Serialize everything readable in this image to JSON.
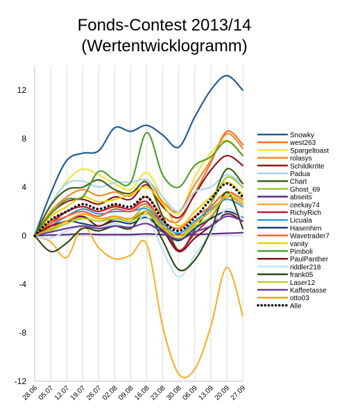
{
  "chart_data": {
    "type": "line",
    "title": "Fonds-Contest 2013/14",
    "subtitle": "(Wertentwicklogramm)",
    "xlabel": "",
    "ylabel": "",
    "x": [
      "28.06",
      "05.07",
      "12.07",
      "19.07",
      "26.07",
      "02.08",
      "09.08",
      "16.08",
      "23.08",
      "30.08",
      "06.09",
      "13.09",
      "20.09",
      "27.09"
    ],
    "ylim": [
      -12,
      14
    ],
    "yticks": [
      12,
      8,
      4,
      0,
      -4,
      -8,
      -12
    ],
    "ytick_labels": [
      "12",
      "8",
      "4",
      "0",
      "-4",
      "-8",
      "-12"
    ],
    "grid": "vertical",
    "legend_position": "right",
    "series": [
      {
        "name": "Snowky",
        "color": "#1f5b9a",
        "style": "solid",
        "values": [
          0,
          3.5,
          6.2,
          6.8,
          7.0,
          8.9,
          8.6,
          9.1,
          8.3,
          7.3,
          9.8,
          12.0,
          13.2,
          12.0
        ]
      },
      {
        "name": "west263",
        "color": "#f4702a",
        "style": "solid",
        "values": [
          0,
          1.2,
          2.0,
          2.4,
          2.0,
          2.5,
          2.2,
          3.2,
          1.6,
          1.2,
          3.5,
          6.0,
          8.6,
          7.5
        ]
      },
      {
        "name": "Spargeltoast",
        "color": "#f7e23a",
        "style": "solid",
        "values": [
          0,
          2.5,
          4.5,
          5.5,
          5.0,
          4.3,
          3.8,
          5.2,
          3.2,
          1.8,
          4.8,
          6.8,
          7.9,
          6.6
        ]
      },
      {
        "name": "rolasys",
        "color": "#ee8b2d",
        "style": "solid",
        "values": [
          0,
          2.0,
          3.2,
          3.8,
          3.3,
          3.6,
          3.3,
          4.6,
          2.8,
          2.0,
          4.2,
          6.2,
          8.4,
          7.2
        ]
      },
      {
        "name": "Schildkröte",
        "color": "#8b1a1a",
        "style": "solid",
        "values": [
          0,
          1.8,
          2.8,
          3.0,
          2.6,
          3.2,
          3.0,
          4.2,
          2.4,
          1.5,
          3.4,
          5.4,
          6.6,
          5.8
        ]
      },
      {
        "name": "Padua",
        "color": "#a8d4f5",
        "style": "solid",
        "values": [
          0,
          2.6,
          4.3,
          4.5,
          4.0,
          4.4,
          4.4,
          4.6,
          3.2,
          2.0,
          3.6,
          4.0,
          5.0,
          4.3
        ]
      },
      {
        "name": "Chart",
        "color": "#3f5f1a",
        "style": "solid",
        "values": [
          0,
          2.5,
          3.8,
          4.0,
          4.6,
          3.8,
          3.5,
          4.4,
          1.6,
          -1.2,
          0.5,
          2.6,
          5.5,
          4.3
        ]
      },
      {
        "name": "Ghost_69",
        "color": "#9bc53d",
        "style": "solid",
        "values": [
          0,
          0.5,
          1.0,
          1.5,
          1.2,
          1.6,
          1.4,
          2.4,
          0.8,
          -0.4,
          1.0,
          2.6,
          4.8,
          4.0
        ]
      },
      {
        "name": "abseits",
        "color": "#5b2a86",
        "style": "solid",
        "values": [
          0,
          0.05,
          0.1,
          0.15,
          0.1,
          0.1,
          0.1,
          0.15,
          0.1,
          0.1,
          0.1,
          0.15,
          0.2,
          0.25
        ]
      },
      {
        "name": "ceekay74",
        "color": "#fbb034",
        "style": "solid",
        "values": [
          0,
          -0.5,
          -1.8,
          0.8,
          -1.0,
          -1.9,
          -1.6,
          -0.7,
          -7.5,
          -11.4,
          -11.0,
          -7.5,
          -2.6,
          -6.6
        ]
      },
      {
        "name": "RichyRich",
        "color": "#c01a3a",
        "style": "solid",
        "values": [
          0,
          1.0,
          2.0,
          2.4,
          2.0,
          2.4,
          2.2,
          2.8,
          0.8,
          -1.2,
          0.2,
          1.5,
          3.2,
          2.6
        ]
      },
      {
        "name": "Licuala",
        "color": "#2e9fd9",
        "style": "solid",
        "values": [
          0,
          0.8,
          1.6,
          2.2,
          1.8,
          2.0,
          2.0,
          2.2,
          1.0,
          0.2,
          1.2,
          2.2,
          3.0,
          2.4
        ]
      },
      {
        "name": "Hasenhirn",
        "color": "#1a3f7a",
        "style": "solid",
        "values": [
          0,
          0.6,
          1.2,
          1.0,
          0.8,
          1.2,
          1.0,
          1.5,
          0.4,
          -0.4,
          0.6,
          1.4,
          2.0,
          1.5
        ]
      },
      {
        "name": "Wavetrader7",
        "color": "#f9602a",
        "style": "solid",
        "values": [
          0,
          1.0,
          1.6,
          2.0,
          1.6,
          2.2,
          2.0,
          2.6,
          1.2,
          0.6,
          1.6,
          2.4,
          3.6,
          3.0
        ]
      },
      {
        "name": "vanity",
        "color": "#f0d000",
        "style": "solid",
        "values": [
          0,
          1.6,
          2.4,
          3.2,
          2.8,
          3.0,
          3.4,
          4.0,
          2.6,
          0.8,
          2.0,
          3.2,
          4.4,
          3.4
        ]
      },
      {
        "name": "Pimboli",
        "color": "#4f9e2f",
        "style": "solid",
        "values": [
          0,
          1.8,
          3.0,
          3.2,
          5.3,
          4.6,
          4.4,
          8.5,
          5.0,
          4.0,
          5.8,
          6.5,
          7.8,
          6.6
        ]
      },
      {
        "name": "PaulPanther",
        "color": "#7a1420",
        "style": "solid",
        "values": [
          0,
          0.8,
          1.2,
          1.6,
          0.8,
          1.4,
          1.2,
          2.0,
          0.5,
          -1.3,
          -0.2,
          0.8,
          1.8,
          1.2
        ]
      },
      {
        "name": "riddler218",
        "color": "#bde3f7",
        "style": "solid",
        "values": [
          0,
          -0.2,
          0.4,
          0.8,
          0.6,
          1.0,
          0.6,
          1.6,
          -1.2,
          -3.4,
          -1.6,
          0.2,
          2.2,
          1.4
        ]
      },
      {
        "name": "frank05",
        "color": "#2c4a10",
        "style": "solid",
        "values": [
          0,
          -1.3,
          -0.6,
          0.6,
          0.4,
          0.8,
          0.6,
          2.0,
          -0.4,
          -2.8,
          -2.0,
          0.4,
          3.6,
          0.6
        ]
      },
      {
        "name": "Laser12",
        "color": "#b3d62a",
        "style": "solid",
        "values": [
          0,
          0.4,
          1.0,
          1.4,
          1.2,
          1.4,
          1.2,
          1.8,
          0.6,
          -0.2,
          0.8,
          1.6,
          3.4,
          2.8
        ]
      },
      {
        "name": "Kaffeetasse",
        "color": "#6a3aa0",
        "style": "solid",
        "values": [
          0,
          0.3,
          0.6,
          0.8,
          0.6,
          0.8,
          0.7,
          1.0,
          0.3,
          -0.3,
          0.3,
          0.8,
          1.6,
          1.2
        ]
      },
      {
        "name": "otto03",
        "color": "#f5a50a",
        "style": "solid",
        "values": [
          0,
          0.6,
          1.2,
          1.8,
          1.4,
          1.6,
          1.4,
          2.0,
          0.8,
          0.0,
          1.0,
          2.0,
          3.2,
          2.6
        ]
      },
      {
        "name": "Alle",
        "color": "#000000",
        "style": "dotted",
        "values": [
          0,
          1.3,
          2.0,
          2.6,
          2.2,
          2.6,
          2.4,
          3.2,
          1.3,
          0.4,
          1.5,
          3.0,
          4.3,
          3.2
        ]
      }
    ]
  }
}
